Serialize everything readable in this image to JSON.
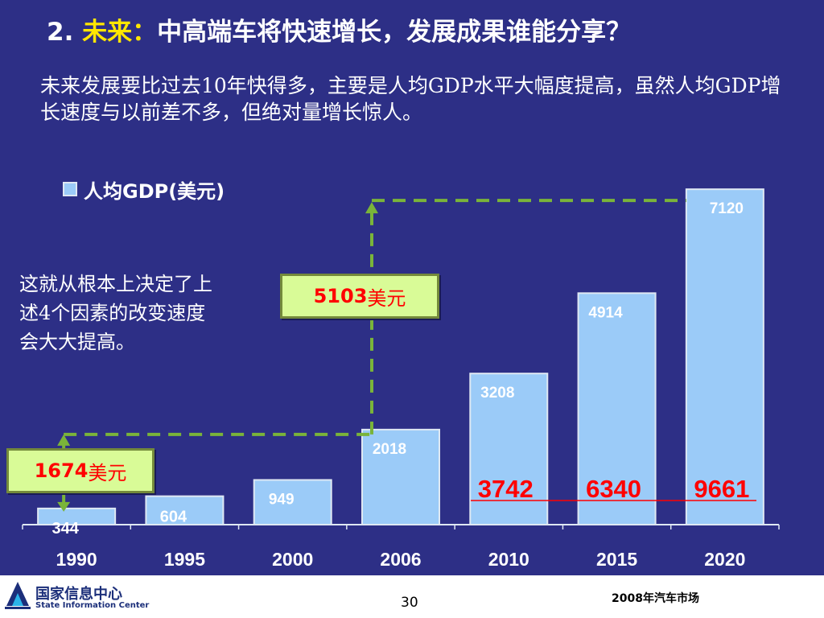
{
  "title": {
    "prefix": "2.",
    "highlight": "未来：",
    "rest": "中高端车将快速增长，发展成果谁能分享？"
  },
  "subtitle": "未来发展要比过去10年快得多，主要是人均GDP水平大幅度提高，虽然人均GDP增长速度与以前差不多，但绝对量增长惊人。",
  "legend_label": "人均GDP(美元)",
  "side_note": "这就从根本上决定了上述4个因素的改变速度会大大提高。",
  "callouts": {
    "left": {
      "value": "1674",
      "unit": "美元"
    },
    "middle": {
      "value": "5103",
      "unit": "美元"
    }
  },
  "chart_data": {
    "type": "bar",
    "categories": [
      "1990",
      "1995",
      "2000",
      "2006",
      "2010",
      "2015",
      "2020"
    ],
    "values": [
      344,
      604,
      949,
      2018,
      3208,
      4914,
      7120
    ],
    "data_labels": [
      "344",
      "604",
      "949",
      "2018",
      "3208",
      "4914",
      "7120"
    ],
    "series": [
      {
        "name": "人均GDP(美元)",
        "values": [
          344,
          604,
          949,
          2018,
          3208,
          4914,
          7120
        ]
      }
    ],
    "annotations": {
      "differences": [
        {
          "from": "2006",
          "to": "2010",
          "label": "3742"
        },
        {
          "from": "2010",
          "to": "2015",
          "label": "6340"
        },
        {
          "from": "2015",
          "to": "2020",
          "label": "9661"
        }
      ],
      "dashed_guides": [
        {
          "from": "1990",
          "to": "2006",
          "amount": "1674"
        },
        {
          "from": "2006",
          "to": "2020",
          "amount": "5103"
        }
      ]
    },
    "ylim": [
      0,
      7550
    ],
    "grid": false,
    "legend": "top-left",
    "colors": {
      "bar": "#9bcbf8",
      "bar_border": "#dfe8f3",
      "dashed_line": "#7ab43a",
      "difference_text": "#ff0000"
    }
  },
  "footer": {
    "logo_cn": "国家信息中心",
    "logo_en": "State Information Center",
    "page_number": "30",
    "note": "2008年汽车市场"
  }
}
